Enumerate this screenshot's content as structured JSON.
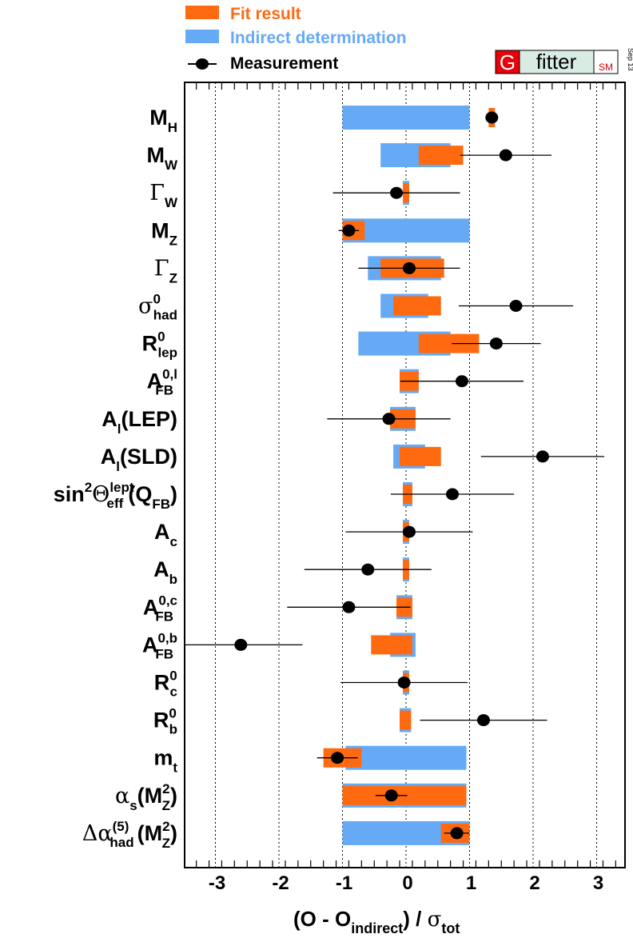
{
  "legend": {
    "fit": "Fit result",
    "indirect": "Indirect determination",
    "measurement": "Measurement"
  },
  "logo": {
    "g": "G",
    "fitter": "fitter",
    "sm": "SM",
    "date": "Sep 13"
  },
  "colors": {
    "fit": "#ff6a10",
    "indirect": "#66aaf5",
    "measurement": "#000000"
  },
  "chart_data": {
    "type": "error-bar",
    "xlabel": "(O - O_indirect) / σ_tot",
    "xlim": [
      -3.5,
      3.5
    ],
    "xticks": [
      -3,
      -2,
      -1,
      0,
      1,
      2,
      3
    ],
    "grid": "vertical dotted at integer ticks",
    "legend_position": "top-left",
    "rows": [
      {
        "label": "M_H",
        "fit": [
          1.3,
          1.4
        ],
        "indirect": [
          -1.0,
          1.0
        ],
        "meas": 1.35,
        "meas_err": 0
      },
      {
        "label": "M_W",
        "fit": [
          0.2,
          0.9
        ],
        "indirect": [
          -0.4,
          0.7
        ],
        "meas": 1.57,
        "meas_err": 0.72
      },
      {
        "label": "Γ_W",
        "fit": [
          -0.05,
          0.05
        ],
        "indirect": [
          -0.05,
          0.05
        ],
        "meas": -0.15,
        "meas_err": 1.0
      },
      {
        "label": "M_Z",
        "fit": [
          -1.0,
          -0.65
        ],
        "indirect": [
          -1.0,
          1.0
        ],
        "meas": -0.9,
        "meas_err": 0.16
      },
      {
        "label": "Γ_Z",
        "fit": [
          -0.4,
          0.6
        ],
        "indirect": [
          -0.6,
          0.55
        ],
        "meas": 0.05,
        "meas_err": 0.8
      },
      {
        "label": "σ_had^0",
        "fit": [
          -0.2,
          0.55
        ],
        "indirect": [
          -0.4,
          0.35
        ],
        "meas": 1.73,
        "meas_err": 0.9
      },
      {
        "label": "R_lep^0",
        "fit": [
          0.2,
          1.15
        ],
        "indirect": [
          -0.75,
          0.7
        ],
        "meas": 1.42,
        "meas_err": 0.7
      },
      {
        "label": "A_FB^0,l",
        "fit": [
          -0.1,
          0.2
        ],
        "indirect": [
          -0.1,
          0.2
        ],
        "meas": 0.88,
        "meas_err": 0.97
      },
      {
        "label": "A_l(LEP)",
        "fit": [
          -0.25,
          0.15
        ],
        "indirect": [
          -0.25,
          0.15
        ],
        "meas": -0.27,
        "meas_err": 0.97
      },
      {
        "label": "A_l(SLD)",
        "fit": [
          -0.1,
          0.55
        ],
        "indirect": [
          -0.2,
          0.3
        ],
        "meas": 2.15,
        "meas_err": 0.97
      },
      {
        "label": "sin²Θ_eff^lept(Q_FB)",
        "fit": [
          -0.05,
          0.1
        ],
        "indirect": [
          -0.05,
          0.1
        ],
        "meas": 0.73,
        "meas_err": 0.97
      },
      {
        "label": "A_c",
        "fit": [
          -0.05,
          0.05
        ],
        "indirect": [
          -0.05,
          0.05
        ],
        "meas": 0.05,
        "meas_err": 1.0
      },
      {
        "label": "A_b",
        "fit": [
          -0.05,
          0.05
        ],
        "indirect": [
          -0.05,
          0.05
        ],
        "meas": -0.6,
        "meas_err": 1.0
      },
      {
        "label": "A_FB^0,c",
        "fit": [
          -0.15,
          0.1
        ],
        "indirect": [
          -0.15,
          0.1
        ],
        "meas": -0.9,
        "meas_err": 0.97
      },
      {
        "label": "A_FB^0,b",
        "fit": [
          -0.55,
          0.1
        ],
        "indirect": [
          -0.25,
          0.15
        ],
        "meas": -2.6,
        "meas_err": 0.97
      },
      {
        "label": "R_c^0",
        "fit": [
          -0.05,
          0.05
        ],
        "indirect": [
          -0.05,
          0.05
        ],
        "meas": -0.03,
        "meas_err": 1.0
      },
      {
        "label": "R_b^0",
        "fit": [
          -0.1,
          0.08
        ],
        "indirect": [
          -0.1,
          0.08
        ],
        "meas": 1.22,
        "meas_err": 1.0
      },
      {
        "label": "m_t",
        "fit": [
          -1.3,
          -0.7
        ],
        "indirect": [
          -0.95,
          0.95
        ],
        "meas": -1.08,
        "meas_err": 0.32
      },
      {
        "label": "α_s(M_Z²)",
        "fit": [
          -1.0,
          0.95
        ],
        "indirect": [
          -1.0,
          0.95
        ],
        "meas": -0.23,
        "meas_err": 0.25
      },
      {
        "label": "Δα_had^(5)(M_Z²)",
        "fit": [
          0.55,
          1.0
        ],
        "indirect": [
          -1.0,
          1.0
        ],
        "meas": 0.8,
        "meas_err": 0.2
      }
    ]
  }
}
